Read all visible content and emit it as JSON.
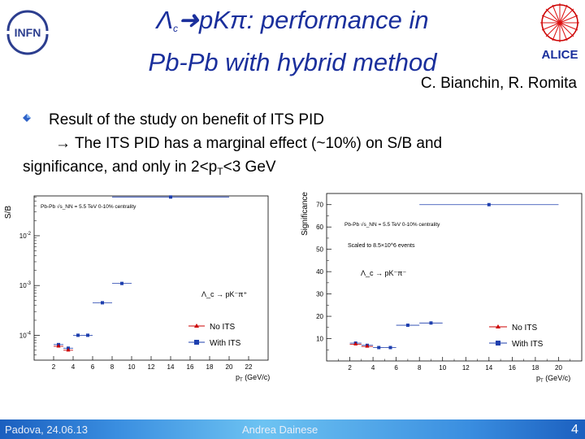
{
  "slide": {
    "title_part1": "Λ",
    "title_part1_sub": "c",
    "title_part2": "pKπ: performance in",
    "title_line2": "Pb-Pb with hybrid method",
    "authors": "C. Bianchin, R. Romita",
    "bullet_line1": "Result of the study on benefit of ITS PID",
    "bullet_line2": "The ITS PID has a marginal effect (~10%) on S/B and",
    "bullet_line3_a": "significance, and only in 2<p",
    "bullet_line3_sub": "T",
    "bullet_line3_b": "<3 GeV",
    "logo_left_text": "INFN",
    "logo_right_text": "ALICE"
  },
  "footer": {
    "left": "Padova, 24.06.13",
    "center": "Andrea Dainese",
    "page": "4"
  },
  "chart_data": [
    {
      "type": "scatter",
      "ylabel": "S/B",
      "xlabel": "p_T (GeV/c)",
      "ylog": true,
      "xlim": [
        0,
        24
      ],
      "ylim_exp": [
        -4.5,
        -1.2
      ],
      "x_ticks": [
        "2",
        "4",
        "6",
        "8",
        "10",
        "12",
        "14",
        "16",
        "18",
        "20",
        "22"
      ],
      "y_ticks": [
        "10^{-2}",
        "10^{-3}",
        "10^{-4}"
      ],
      "header": "Pb-Pb √s_NN = 5.5 TeV 0-10% centrality",
      "reaction_label": "Λ_c → pK⁻π⁺",
      "legend": [
        "No ITS",
        "With ITS"
      ],
      "series": [
        {
          "name": "With ITS",
          "points": [
            [
              2.5,
              6.5e-05
            ],
            [
              3.5,
              5.5e-05
            ],
            [
              4.5,
              0.0001
            ],
            [
              5.5,
              0.0001
            ],
            [
              7,
              0.00045
            ],
            [
              9,
              0.0011
            ],
            [
              14,
              0.06
            ]
          ]
        },
        {
          "name": "No ITS",
          "points": [
            [
              2.5,
              6e-05
            ],
            [
              3.5,
              5e-05
            ]
          ]
        }
      ]
    },
    {
      "type": "scatter",
      "ylabel": "Significance",
      "xlabel": "p_T (GeV/c)",
      "xlim": [
        0,
        22
      ],
      "ylim": [
        0,
        75
      ],
      "x_ticks": [
        "2",
        "4",
        "6",
        "8",
        "10",
        "12",
        "14",
        "16",
        "18",
        "20"
      ],
      "y_ticks": [
        "10",
        "20",
        "30",
        "40",
        "50",
        "60",
        "70"
      ],
      "header": "Pb-Pb √s_NN = 5.5 TeV 0-10% centrality",
      "scaling_label": "Scaled to 8.5×10^6 events",
      "reaction_label": "Λ_c → pK⁻π⁻",
      "legend": [
        "No ITS",
        "With ITS"
      ],
      "series": [
        {
          "name": "With ITS",
          "points": [
            [
              2.5,
              8
            ],
            [
              3.5,
              7
            ],
            [
              4.5,
              6
            ],
            [
              5.5,
              6
            ],
            [
              7,
              16
            ],
            [
              9,
              17
            ],
            [
              14,
              70
            ]
          ]
        },
        {
          "name": "No ITS",
          "points": [
            [
              2.5,
              7.5
            ],
            [
              3.5,
              6.5
            ]
          ]
        }
      ]
    }
  ]
}
